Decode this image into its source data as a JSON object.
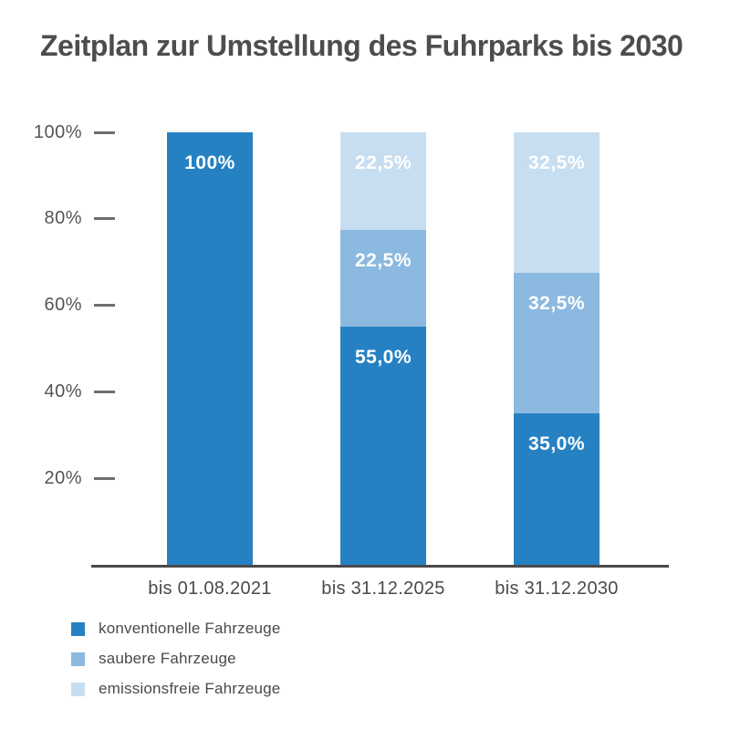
{
  "title": "Zeitplan zur Umstellung des Fuhrparks bis 2030",
  "colors": {
    "konventionelle_fahrzeuge": "#2681C3",
    "saubere_fahrzeuge": "#8BB9DF",
    "emissionsfreie_fahrzeuge": "#C7DEF1",
    "axis_line": "#4A4A4A",
    "text": "#4D4D4D",
    "bar_label_text": "#FFFFFF"
  },
  "chart_data": {
    "type": "bar",
    "subtype": "stacked-vertical",
    "title": "Zeitplan zur Umstellung des Fuhrparks bis 2030",
    "categories": [
      "bis 01.08.2021",
      "bis 31.12.2025",
      "bis 31.12.2030"
    ],
    "series": [
      {
        "name": "konventionelle Fahrzeuge",
        "color": "#2681C3",
        "values": [
          100,
          55.0,
          35.0
        ]
      },
      {
        "name": "saubere Fahrzeuge",
        "color": "#8BB9DF",
        "values": [
          0,
          22.5,
          32.5
        ]
      },
      {
        "name": "emissionsfreie Fahrzeuge",
        "color": "#C7DEF1",
        "values": [
          0,
          22.5,
          32.5
        ]
      }
    ],
    "segment_labels": [
      [
        "100%",
        "",
        ""
      ],
      [
        "55,0%",
        "22,5%",
        "22,5%"
      ],
      [
        "35,0%",
        "32,5%",
        "32,5%"
      ]
    ],
    "y_axis": {
      "range": [
        0,
        100
      ],
      "grid": false,
      "ticks": [
        {
          "label": "100%",
          "value": 100
        },
        {
          "label": "80%",
          "value": 80
        },
        {
          "label": "60%",
          "value": 60
        },
        {
          "label": "40%",
          "value": 40
        },
        {
          "label": "20%",
          "value": 20
        }
      ]
    },
    "legend": {
      "position": "bottom-left",
      "items": [
        {
          "label": "konventionelle Fahrzeuge",
          "color": "#2681C3"
        },
        {
          "label": "saubere Fahrzeuge",
          "color": "#8BB9DF"
        },
        {
          "label": "emissionsfreie Fahrzeuge",
          "color": "#C7DEF1"
        }
      ]
    }
  }
}
